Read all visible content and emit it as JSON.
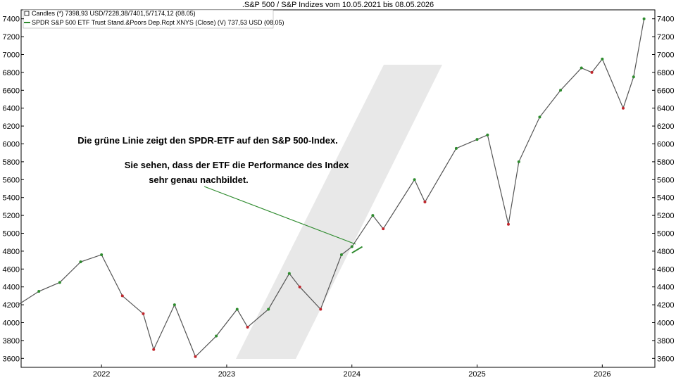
{
  "chart_data": {
    "type": "candlestick",
    "title": ".S&P 500 / S&P Indizes vom 10.05.2021 bis 08.05.2026",
    "xlabel": "",
    "ylabel": "",
    "ylim": [
      3500,
      7500
    ],
    "y_ticks": [
      3600,
      3800,
      4000,
      4200,
      4400,
      4600,
      4800,
      5000,
      5200,
      5400,
      5600,
      5800,
      6000,
      6200,
      6400,
      6600,
      6800,
      7000,
      7200,
      7400
    ],
    "y_tick_labels": [
      "3600",
      "3800",
      "4000",
      "4200",
      "4400",
      "4600",
      "4800",
      "5000",
      "5200",
      "5400",
      "5600",
      "5800",
      "6000",
      "6200",
      "6400",
      "6600",
      "6800",
      "7000",
      "7200",
      "7400"
    ],
    "x_ticks": [
      "2022",
      "2023",
      "2024",
      "2025",
      "2026"
    ],
    "grid": false,
    "legend_position": "top-left",
    "legend": [
      {
        "label": "Candles (*) 7398,93 USD/7228,38/7401,5/7174,12 (08.05)",
        "color": "#ffffff"
      },
      {
        "label": "SPDR S&P 500 ETF Trust Stand.&Poors Dep.Rcpt XNYS (Close) (V) 737,53 USD (08.05)",
        "color": "#2e8b2e"
      }
    ],
    "colors": {
      "up": "#2e8b2e",
      "down": "#c0262c",
      "etf_line": "#2e8b2e",
      "watermark": "#e6e6e6"
    },
    "series": [
      {
        "name": "S&P 500",
        "dates": [
          "2021-05",
          "2021-07",
          "2021-09",
          "2021-11",
          "2022-01",
          "2022-03",
          "2022-05",
          "2022-06",
          "2022-08",
          "2022-10",
          "2022-12",
          "2023-02",
          "2023-03",
          "2023-05",
          "2023-07",
          "2023-08",
          "2023-10",
          "2023-12",
          "2024-01",
          "2024-03",
          "2024-04",
          "2024-07",
          "2024-08",
          "2024-11",
          "2025-01",
          "2025-02",
          "2025-04",
          "2025-05",
          "2025-07",
          "2025-09",
          "2025-11",
          "2025-12",
          "2026-01",
          "2026-03",
          "2026-04",
          "2026-05"
        ],
        "values": [
          4200,
          4350,
          4450,
          4680,
          4760,
          4300,
          4100,
          3700,
          4200,
          3620,
          3850,
          4150,
          3950,
          4150,
          4550,
          4400,
          4150,
          4760,
          4850,
          5200,
          5050,
          5600,
          5350,
          5950,
          6050,
          6100,
          5100,
          5800,
          6300,
          6600,
          6850,
          6800,
          6950,
          6400,
          6750,
          7400
        ]
      },
      {
        "name": "SPDR S&P 500 ETF Trust Stand.&Poors Dep.Rcpt XNYS (Close)",
        "dates": [
          "2024-01",
          "2024-02"
        ],
        "values": [
          4780,
          4850
        ]
      }
    ],
    "annotations": [
      "Die grüne Linie zeigt den SPDR-ETF auf den S&P 500-Index.",
      "Sie sehen, dass der ETF die Performance des Index",
      "sehr genau nachbildet."
    ]
  }
}
